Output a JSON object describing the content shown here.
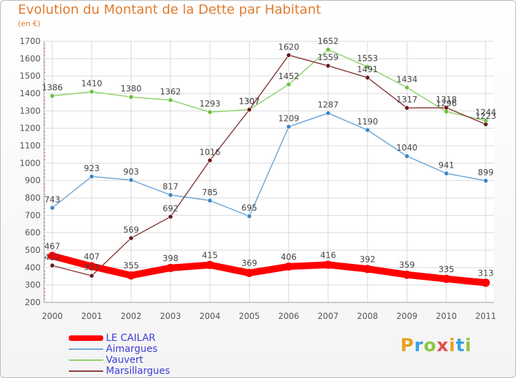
{
  "header": {
    "title": "Evolution du Montant de la Dette par Habitant",
    "subtitle": "(en €)"
  },
  "logo": {
    "text": "Proxiti",
    "colors": [
      "#e8a020",
      "#3aa0e0",
      "#8cc63f",
      "#e05050",
      "#e8a020",
      "#3aa0e0",
      "#8cc63f"
    ]
  },
  "chart_data": {
    "type": "line",
    "x": [
      "2000",
      "2001",
      "2002",
      "2003",
      "2004",
      "2005",
      "2006",
      "2007",
      "2008",
      "2009",
      "2010",
      "2011"
    ],
    "ylim": [
      200,
      1700
    ],
    "yticks": [
      "200",
      "300",
      "400",
      "500",
      "600",
      "700",
      "800",
      "900",
      "1000",
      "1100",
      "1200",
      "1300",
      "1400",
      "1500",
      "1600",
      "1700"
    ],
    "grid": true,
    "series": [
      {
        "name": "LE CAILAR",
        "color": "#ff0000",
        "marker_color": "#ff0000",
        "emphasis": true,
        "values": [
          467,
          407,
          355,
          398,
          415,
          369,
          406,
          416,
          392,
          359,
          335,
          313
        ],
        "labels": [
          "467",
          "407",
          "355",
          "398",
          "415",
          "369",
          "406",
          "416",
          "392",
          "359",
          "335",
          "313"
        ]
      },
      {
        "name": "Aimargues",
        "color": "#6aa6d8",
        "marker_color": "#3b86c8",
        "values": [
          743,
          923,
          903,
          817,
          785,
          695,
          1209,
          1287,
          1190,
          1040,
          941,
          899
        ],
        "labels": [
          "743",
          "923",
          "903",
          "817",
          "785",
          "695",
          "1209",
          "1287",
          "1190",
          "1040",
          "941",
          "899"
        ]
      },
      {
        "name": "Vauvert",
        "color": "#8fd16a",
        "marker_color": "#6cc040",
        "values": [
          1386,
          1410,
          1380,
          1362,
          1293,
          1307,
          1452,
          1652,
          1553,
          1434,
          1296,
          1244
        ],
        "labels": [
          "1386",
          "1410",
          "1380",
          "1362",
          "1293",
          "1307",
          "1452",
          "1652",
          "1553",
          "1434",
          "1296",
          "1244"
        ]
      },
      {
        "name": "Marsillargues",
        "color": "#8b3a3a",
        "marker_color": "#6b1b1b",
        "values": [
          412,
          353,
          569,
          692,
          1016,
          1307,
          1620,
          1559,
          1491,
          1317,
          1318,
          1223
        ],
        "labels": [
          "412",
          "353",
          "569",
          "692",
          "1016",
          "1307",
          "1620",
          "1559",
          "1491",
          "1317",
          "1318",
          "1223"
        ]
      }
    ]
  }
}
